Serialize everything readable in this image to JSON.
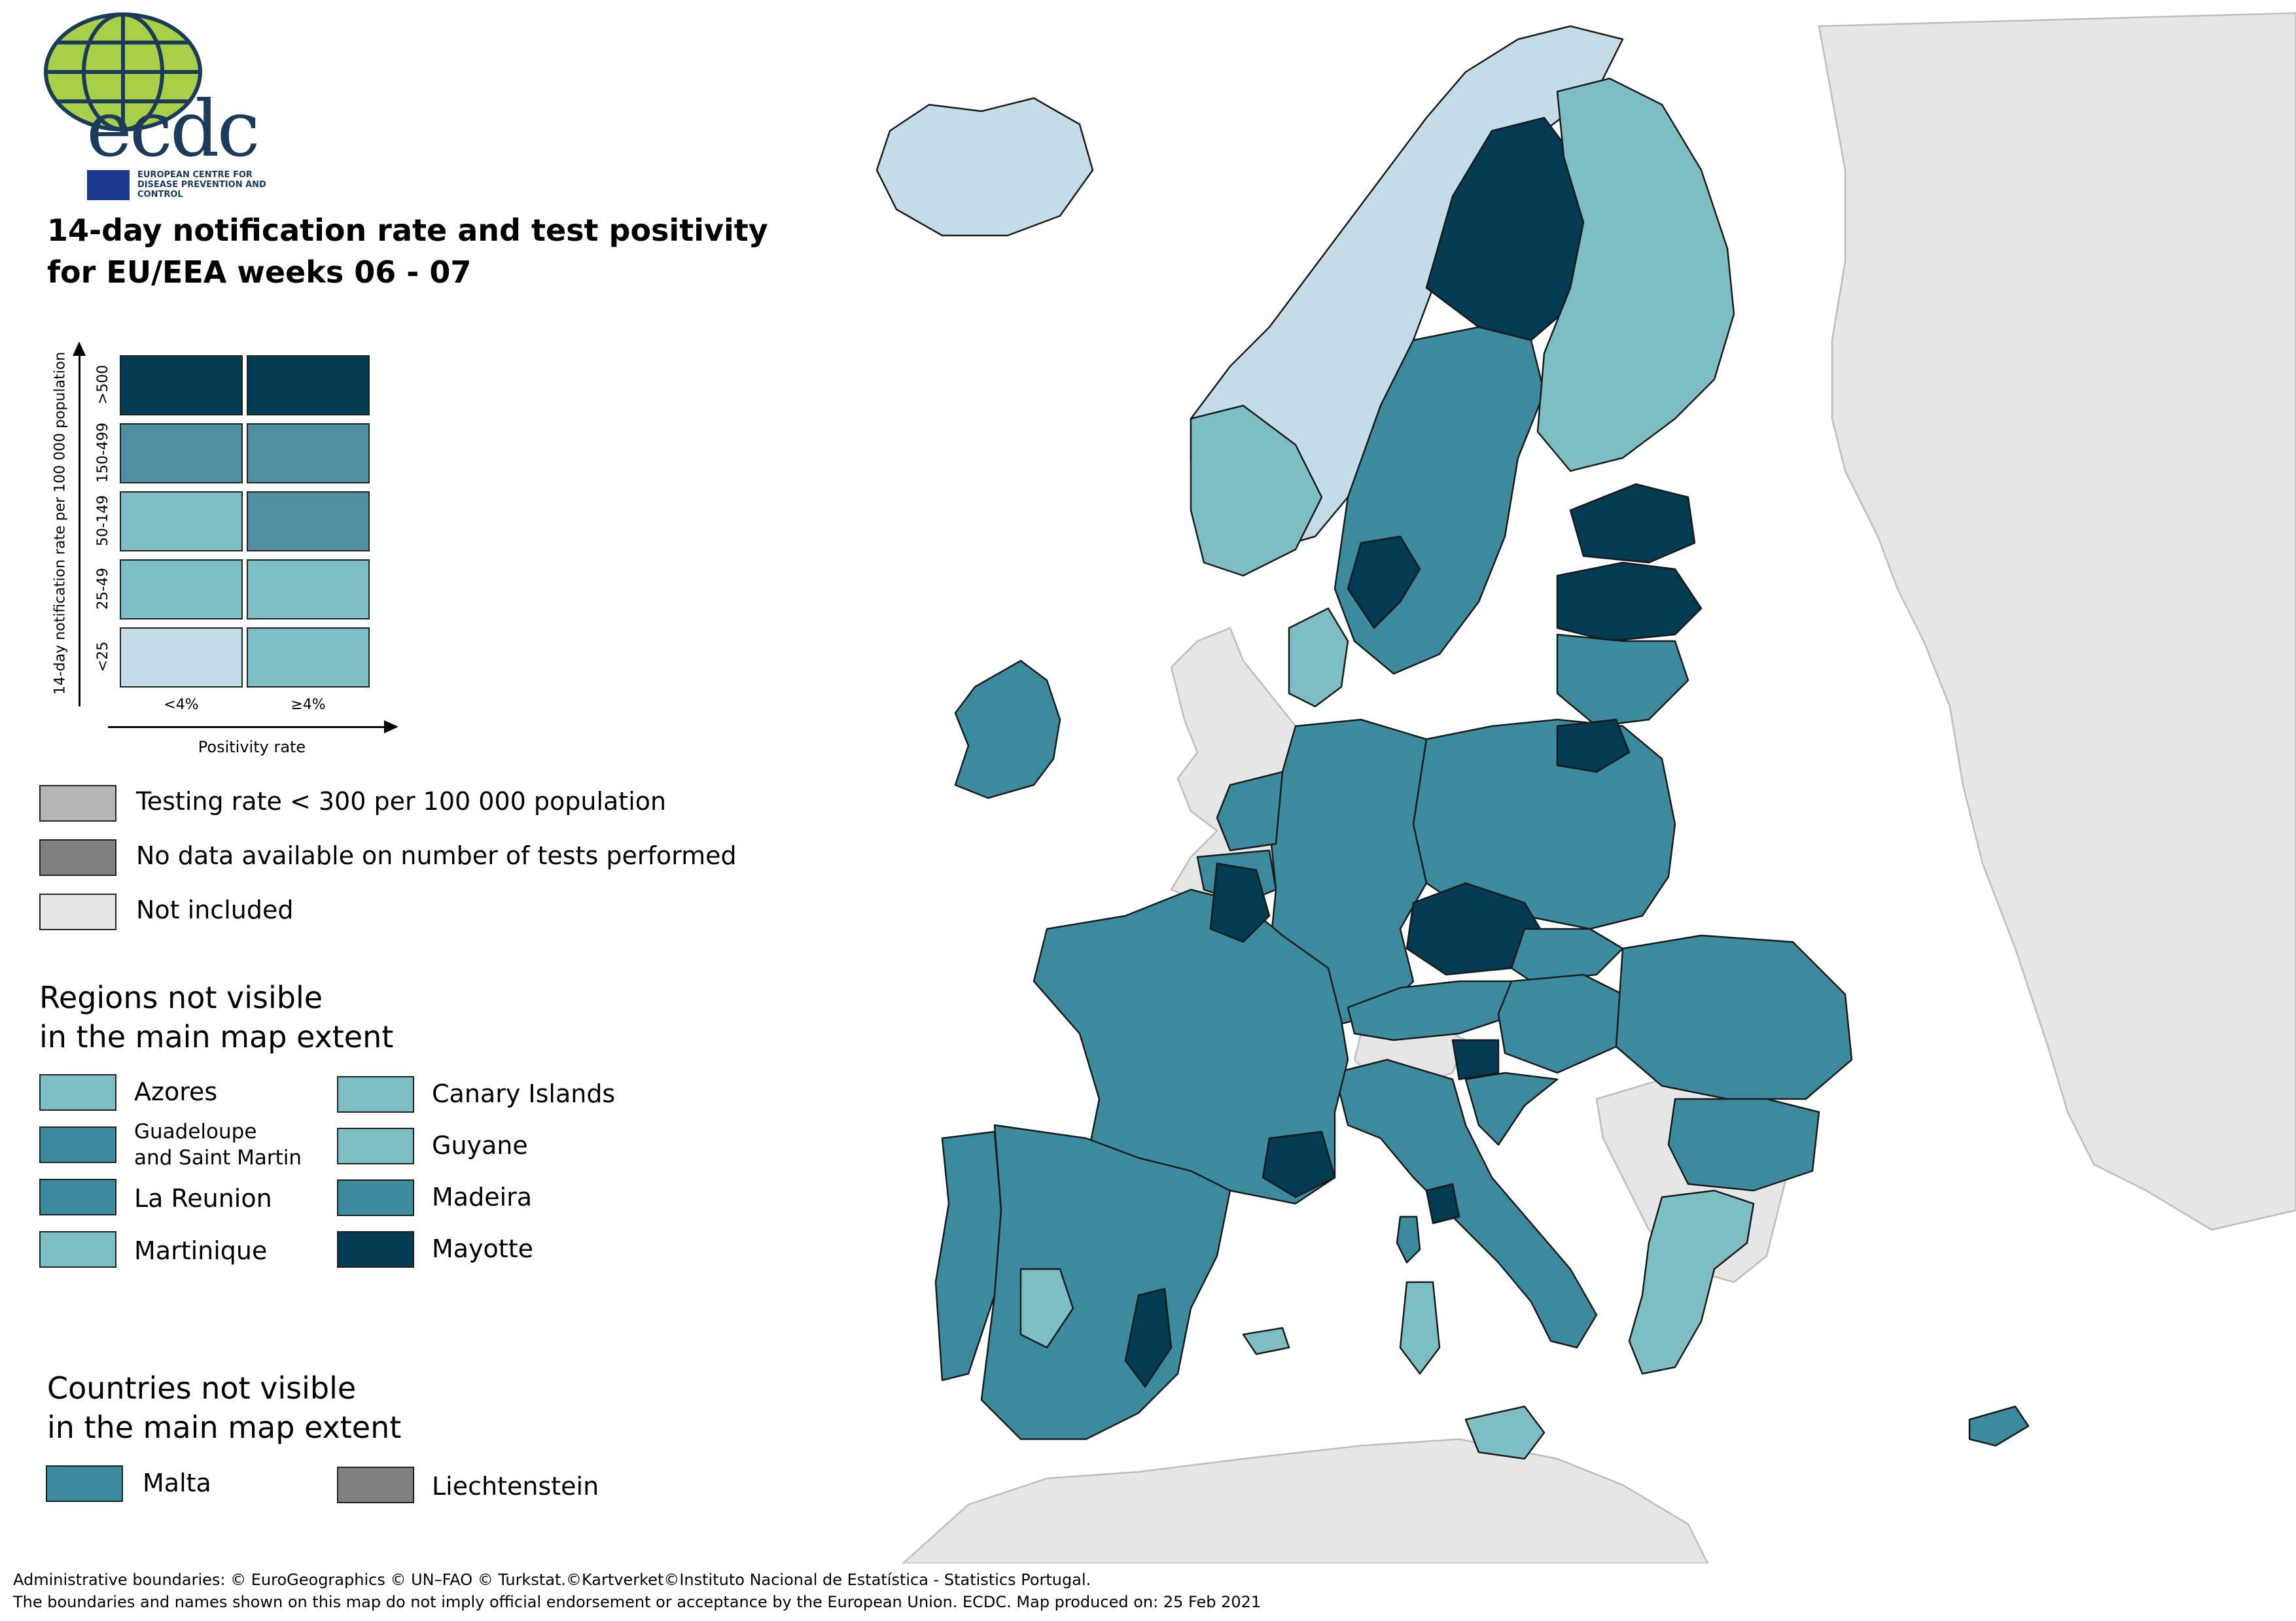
{
  "logo": {
    "text": "ecdc",
    "subtitle": "EUROPEAN CENTRE FOR DISEASE PREVENTION AND CONTROL"
  },
  "title_line1": "14-day notification rate and test positivity",
  "title_line2": "for EU/EEA weeks 06 - 07",
  "bivariate_legend": {
    "y_label": "14-day notification rate per 100 000 population",
    "x_label": "Positivity rate",
    "rows": [
      ">500",
      "150-499",
      "50-149",
      "25-49",
      "<25"
    ],
    "cols": [
      "<4%",
      "≥4%"
    ],
    "colors": [
      [
        "#033b52",
        "#033b52"
      ],
      [
        "#4f8fa0",
        "#4f8fa0"
      ],
      [
        "#7dbec4",
        "#4f8fa0"
      ],
      [
        "#7dbec4",
        "#7dbec4"
      ],
      [
        "#c4dbe8",
        "#7dbec4"
      ]
    ]
  },
  "status_legend": [
    {
      "label": "Testing rate < 300 per 100 000 population",
      "color": "#b5b5b5"
    },
    {
      "label": "No data available on number of tests performed",
      "color": "#808080"
    },
    {
      "label": "Not included",
      "color": "#e6e6e6"
    }
  ],
  "regions_heading_1": "Regions not visible",
  "regions_heading_2": "in the main map extent",
  "regions": [
    {
      "label": "Azores",
      "color": "#7dbec4"
    },
    {
      "label": "Canary Islands",
      "color": "#7dbec4"
    },
    {
      "label": "Guadeloupe and Saint Martin",
      "label1": "Guadeloupe",
      "label2": "and Saint Martin",
      "color": "#3c8a9d"
    },
    {
      "label": "Guyane",
      "color": "#7dbec4"
    },
    {
      "label": "La Reunion",
      "color": "#3c8a9d"
    },
    {
      "label": "Madeira",
      "color": "#3c8a9d"
    },
    {
      "label": "Martinique",
      "color": "#7dbec4"
    },
    {
      "label": "Mayotte",
      "color": "#033b52"
    }
  ],
  "countries_heading_1": "Countries not visible",
  "countries_heading_2": "in the main map extent",
  "countries": [
    {
      "label": "Malta",
      "color": "#3c8a9d"
    },
    {
      "label": "Liechtenstein",
      "color": "#808080"
    }
  ],
  "footer_line1": "Administrative boundaries: © EuroGeographics © UN–FAO © Turkstat.©Kartverket©Instituto Nacional de Estatística - Statistics Portugal.",
  "footer_line2": "The boundaries and names shown on this map do not imply official endorsement or acceptance by the European Union. ECDC. Map produced on: 25 Feb 2021",
  "map_colors": {
    "dark": "#033b52",
    "mid": "#3c8a9d",
    "light": "#7dbec4",
    "pale": "#c4dbe8",
    "not_included": "#e6e6e6",
    "border": "#1a1a1a"
  }
}
